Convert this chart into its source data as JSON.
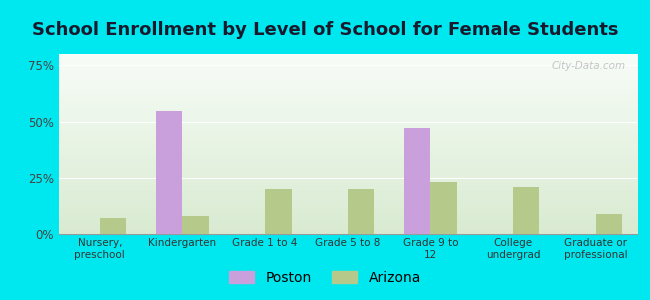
{
  "title": "School Enrollment by Level of School for Female Students",
  "categories": [
    "Nursery,\npreschool",
    "Kindergarten",
    "Grade 1 to 4",
    "Grade 5 to 8",
    "Grade 9 to\n12",
    "College\nundergrad",
    "Graduate or\nprofessional"
  ],
  "poston_values": [
    0,
    54.5,
    0,
    0,
    47.0,
    0,
    0
  ],
  "arizona_values": [
    7.0,
    8.0,
    20.0,
    20.0,
    23.0,
    21.0,
    9.0
  ],
  "poston_color": "#c9a0dc",
  "arizona_color": "#b5c98a",
  "legend_poston": "Poston",
  "legend_arizona": "Arizona",
  "yticks": [
    0,
    25,
    50,
    75
  ],
  "ytick_labels": [
    "0%",
    "25%",
    "50%",
    "75%"
  ],
  "ylim": [
    0,
    80
  ],
  "background_color": "#00e8ef",
  "plot_bg_color": "#e8f2e0",
  "title_fontsize": 13,
  "watermark": "City-Data.com"
}
